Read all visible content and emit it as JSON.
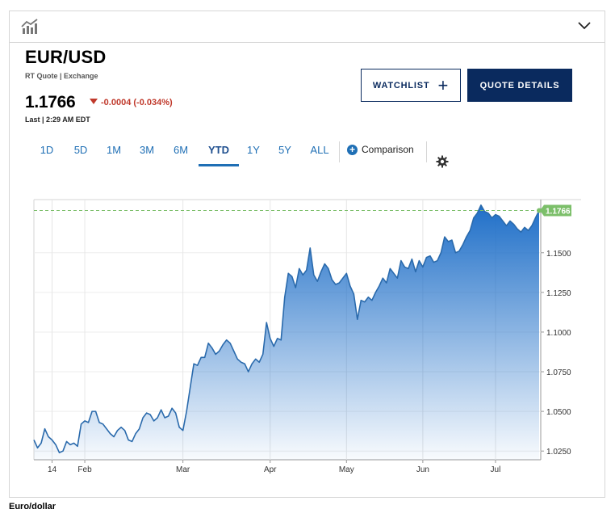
{
  "header": {
    "chart_icon": "bar-chart-trend-icon",
    "collapse_icon": "chevron-down-icon"
  },
  "quote": {
    "symbol": "EUR/USD",
    "subtitle": "RT Quote | Exchange",
    "price": "1.1766",
    "change": "-0.0004 (-0.034%)",
    "change_direction": "down",
    "last_updated": "Last | 2:29 AM EDT"
  },
  "buttons": {
    "watchlist": "WATCHLIST",
    "quote_details": "QUOTE DETAILS"
  },
  "tabs": [
    {
      "label": "1D",
      "active": false
    },
    {
      "label": "5D",
      "active": false
    },
    {
      "label": "1M",
      "active": false
    },
    {
      "label": "3M",
      "active": false
    },
    {
      "label": "6M",
      "active": false
    },
    {
      "label": "YTD",
      "active": true
    },
    {
      "label": "1Y",
      "active": false
    },
    {
      "label": "5Y",
      "active": false
    },
    {
      "label": "ALL",
      "active": false
    }
  ],
  "comparison": "Comparison",
  "settings_icon": "gear-icon",
  "colors": {
    "accent": "#1f6fb5",
    "navy": "#0a2a5e",
    "negative": "#c0392b",
    "last_label_bg": "#7cbf6a"
  },
  "caption": "Euro/dollar",
  "chart_data": {
    "type": "area",
    "title": "",
    "xlabel": "",
    "ylabel": "",
    "ylim": [
      1.0195,
      1.1835
    ],
    "x_ticks": [
      "14",
      "Feb",
      "Mar",
      "Apr",
      "May",
      "Jun",
      "Jul"
    ],
    "y_ticks": [
      "1.0250",
      "1.0500",
      "1.0750",
      "1.1000",
      "1.1250",
      "1.1500"
    ],
    "last_value": "1.1766",
    "grid": true,
    "series": [
      {
        "values": [
          1.032,
          1.027,
          1.03,
          1.039,
          1.034,
          1.032,
          1.029,
          1.024,
          1.025,
          1.031,
          1.029,
          1.03,
          1.028,
          1.042,
          1.044,
          1.043,
          1.05,
          1.05,
          1.043,
          1.042,
          1.039,
          1.036,
          1.034,
          1.038,
          1.04,
          1.038,
          1.032,
          1.031,
          1.036,
          1.039,
          1.046,
          1.049,
          1.048,
          1.044,
          1.046,
          1.051,
          1.046,
          1.047,
          1.052,
          1.049,
          1.04,
          1.038,
          1.05,
          1.065,
          1.08,
          1.079,
          1.084,
          1.084,
          1.093,
          1.09,
          1.086,
          1.088,
          1.092,
          1.095,
          1.093,
          1.088,
          1.083,
          1.081,
          1.08,
          1.075,
          1.08,
          1.083,
          1.081,
          1.086,
          1.106,
          1.096,
          1.091,
          1.096,
          1.095,
          1.122,
          1.137,
          1.135,
          1.128,
          1.14,
          1.136,
          1.139,
          1.153,
          1.136,
          1.132,
          1.138,
          1.143,
          1.14,
          1.133,
          1.13,
          1.131,
          1.134,
          1.137,
          1.129,
          1.124,
          1.108,
          1.12,
          1.119,
          1.122,
          1.12,
          1.125,
          1.129,
          1.134,
          1.131,
          1.14,
          1.137,
          1.134,
          1.145,
          1.141,
          1.14,
          1.146,
          1.138,
          1.145,
          1.141,
          1.147,
          1.148,
          1.144,
          1.145,
          1.15,
          1.16,
          1.157,
          1.158,
          1.15,
          1.151,
          1.155,
          1.16,
          1.164,
          1.172,
          1.175,
          1.18,
          1.176,
          1.175,
          1.172,
          1.174,
          1.173,
          1.17,
          1.167,
          1.17,
          1.168,
          1.165,
          1.163,
          1.166,
          1.164,
          1.167,
          1.172,
          1.1766
        ]
      }
    ]
  }
}
